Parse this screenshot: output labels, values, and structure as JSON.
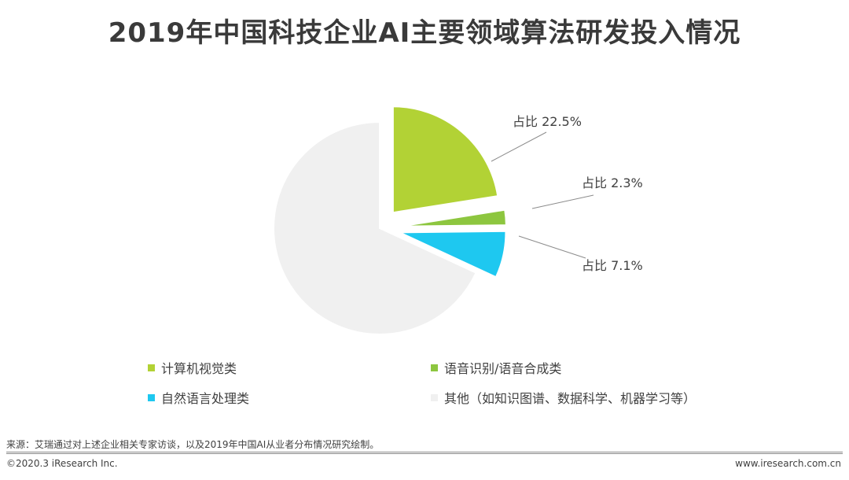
{
  "title": "2019年中国科技企业AI主要领域算法研发投入情况",
  "chart_data": {
    "type": "pie",
    "title": "2019年中国科技企业AI主要领域算法研发投入情况",
    "slices": [
      {
        "name": "计算机视觉类",
        "value": 22.5,
        "label": "占比 22.5%",
        "color": "#b2d235",
        "exploded": true
      },
      {
        "name": "语音识别/语音合成类",
        "value": 2.3,
        "label": "占比 2.3%",
        "color": "#8dc63f",
        "exploded": true
      },
      {
        "name": "自然语言处理类",
        "value": 7.1,
        "label": "占比 7.1%",
        "color": "#1ec8f0",
        "exploded": true
      },
      {
        "name": "其他（如知识图谱、数据科学、机器学习等）",
        "value": 68.1,
        "label": "",
        "color": "#f0f0f0",
        "exploded": false
      }
    ],
    "legend_position": "bottom"
  },
  "footer": {
    "source": "来源：艾瑞通过对上述企业相关专家访谈，以及2019年中国AI从业者分布情况研究绘制。",
    "copyright": "©2020.3 iResearch Inc.",
    "website": "www.iresearch.com.cn"
  }
}
